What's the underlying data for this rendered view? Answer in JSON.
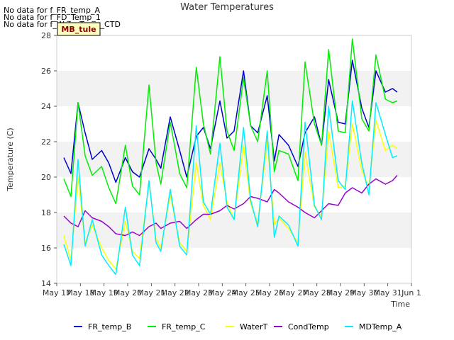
{
  "notes": [
    "No data for f_FR_temp_A",
    "No data for f_FD_Temp_1",
    "No data for f_WaterTemp_CTD"
  ],
  "site_badge": "MB_tule",
  "chart_data": {
    "type": "line",
    "title": "Water Temperatures",
    "xlabel": "Time",
    "ylabel": "Temperature (C)",
    "ylim": [
      14,
      28
    ],
    "yticks": [
      14,
      16,
      18,
      20,
      22,
      24,
      26,
      28
    ],
    "xlim": [
      17,
      32
    ],
    "xticks": [
      {
        "x": 17,
        "label": "May 17"
      },
      {
        "x": 18,
        "label": "May 18"
      },
      {
        "x": 19,
        "label": "May 19"
      },
      {
        "x": 20,
        "label": "May 20"
      },
      {
        "x": 21,
        "label": "May 21"
      },
      {
        "x": 22,
        "label": "May 22"
      },
      {
        "x": 23,
        "label": "May 23"
      },
      {
        "x": 24,
        "label": "May 24"
      },
      {
        "x": 25,
        "label": "May 25"
      },
      {
        "x": 26,
        "label": "May 26"
      },
      {
        "x": 27,
        "label": "May 27"
      },
      {
        "x": 28,
        "label": "May 28"
      },
      {
        "x": 29,
        "label": "May 29"
      },
      {
        "x": 30,
        "label": "May 30"
      },
      {
        "x": 31,
        "label": "May 31"
      },
      {
        "x": 32,
        "label": "Jun 1"
      }
    ],
    "grid": "horizontal bands",
    "legend": "bottom",
    "series": [
      {
        "name": "FR_temp_B",
        "color": "#0000cc",
        "x": [
          17.3,
          17.6,
          17.9,
          18.2,
          18.5,
          18.9,
          19.2,
          19.5,
          19.9,
          20.2,
          20.5,
          20.9,
          21.2,
          21.4,
          21.8,
          22.2,
          22.5,
          22.9,
          23.2,
          23.5,
          23.9,
          24.2,
          24.5,
          24.9,
          25.2,
          25.5,
          25.9,
          26.2,
          26.4,
          26.8,
          27.2,
          27.5,
          27.9,
          28.2,
          28.5,
          28.9,
          29.2,
          29.5,
          29.9,
          30.2,
          30.5,
          30.9,
          31.2,
          31.4
        ],
        "y": [
          21.1,
          20.2,
          24.2,
          22.5,
          21.0,
          21.5,
          20.8,
          19.7,
          21.1,
          20.3,
          20.0,
          21.6,
          21.0,
          20.5,
          23.4,
          21.5,
          20.0,
          22.3,
          22.8,
          21.6,
          24.3,
          22.2,
          22.6,
          26.0,
          22.9,
          22.5,
          24.6,
          20.9,
          22.4,
          21.8,
          20.6,
          22.5,
          23.4,
          21.8,
          25.5,
          23.1,
          23.0,
          26.6,
          23.9,
          22.8,
          26.0,
          24.8,
          25.0,
          24.8
        ]
      },
      {
        "name": "FR_temp_C",
        "color": "#00ee00",
        "x": [
          17.3,
          17.6,
          17.9,
          18.2,
          18.5,
          18.9,
          19.2,
          19.5,
          19.9,
          20.2,
          20.5,
          20.9,
          21.2,
          21.4,
          21.8,
          22.2,
          22.5,
          22.9,
          23.2,
          23.5,
          23.9,
          24.2,
          24.5,
          24.9,
          25.2,
          25.5,
          25.9,
          26.2,
          26.4,
          26.8,
          27.2,
          27.5,
          27.9,
          28.2,
          28.5,
          28.9,
          29.2,
          29.5,
          29.9,
          30.2,
          30.5,
          30.9,
          31.2,
          31.4
        ],
        "y": [
          19.9,
          18.9,
          24.2,
          21.2,
          20.1,
          20.6,
          19.4,
          18.5,
          21.8,
          19.5,
          19.0,
          25.2,
          20.8,
          19.6,
          23.1,
          20.2,
          19.4,
          26.2,
          23.0,
          21.3,
          26.8,
          22.6,
          21.5,
          25.6,
          22.9,
          22.0,
          26.0,
          20.3,
          21.5,
          21.3,
          19.8,
          26.5,
          23.0,
          21.8,
          27.2,
          22.6,
          22.5,
          27.8,
          23.3,
          22.6,
          26.9,
          24.4,
          24.2,
          24.3
        ]
      },
      {
        "name": "WaterT",
        "color": "#ffff00",
        "x": [
          17.3,
          17.6,
          17.9,
          18.2,
          18.5,
          18.9,
          19.2,
          19.5,
          19.9,
          20.2,
          20.5,
          20.9,
          21.2,
          21.4,
          21.8,
          22.2,
          22.5,
          22.9,
          23.2,
          23.5,
          23.9,
          24.2,
          24.5,
          24.9,
          25.2,
          25.5,
          25.9,
          26.2,
          26.4,
          26.8,
          27.2,
          27.5,
          27.9,
          28.2,
          28.5,
          28.9,
          29.2,
          29.5,
          29.9,
          30.2,
          30.5,
          30.9,
          31.2,
          31.4
        ],
        "y": [
          16.7,
          15.3,
          20.0,
          16.3,
          17.3,
          16.0,
          15.3,
          14.8,
          17.5,
          15.8,
          15.4,
          19.7,
          16.5,
          16.0,
          19.0,
          16.3,
          15.8,
          20.8,
          18.4,
          17.6,
          20.8,
          18.6,
          17.6,
          21.8,
          18.5,
          17.4,
          22.0,
          17.3,
          17.7,
          17.1,
          16.3,
          21.4,
          18.3,
          17.8,
          22.6,
          19.4,
          19.5,
          23.0,
          20.4,
          19.4,
          23.2,
          21.5,
          21.8,
          21.6
        ]
      },
      {
        "name": "CondTemp",
        "color": "#9900cc",
        "x": [
          17.3,
          17.6,
          17.9,
          18.2,
          18.5,
          18.9,
          19.2,
          19.5,
          19.9,
          20.2,
          20.5,
          20.9,
          21.2,
          21.4,
          21.8,
          22.2,
          22.5,
          22.9,
          23.2,
          23.5,
          23.9,
          24.2,
          24.5,
          24.9,
          25.2,
          25.5,
          25.9,
          26.2,
          26.4,
          26.8,
          27.2,
          27.5,
          27.9,
          28.2,
          28.5,
          28.9,
          29.2,
          29.5,
          29.9,
          30.2,
          30.5,
          30.9,
          31.2,
          31.4
        ],
        "y": [
          17.8,
          17.4,
          17.2,
          18.1,
          17.7,
          17.5,
          17.2,
          16.8,
          16.7,
          16.9,
          16.7,
          17.2,
          17.4,
          17.1,
          17.4,
          17.5,
          17.1,
          17.6,
          17.9,
          17.9,
          18.1,
          18.4,
          18.2,
          18.5,
          18.9,
          18.8,
          18.6,
          19.3,
          19.1,
          18.6,
          18.3,
          18.0,
          17.7,
          18.1,
          18.5,
          18.4,
          19.1,
          19.4,
          19.1,
          19.6,
          19.9,
          19.6,
          19.8,
          20.1
        ]
      },
      {
        "name": "MDTemp_A",
        "color": "#00eeff",
        "x": [
          17.3,
          17.6,
          17.9,
          18.2,
          18.5,
          18.9,
          19.2,
          19.5,
          19.9,
          20.2,
          20.5,
          20.9,
          21.2,
          21.4,
          21.8,
          22.2,
          22.5,
          22.9,
          23.2,
          23.5,
          23.9,
          24.2,
          24.5,
          24.9,
          25.2,
          25.5,
          25.9,
          26.2,
          26.4,
          26.8,
          27.2,
          27.5,
          27.9,
          28.2,
          28.5,
          28.9,
          29.2,
          29.5,
          29.9,
          30.2,
          30.5,
          30.9,
          31.2,
          31.4
        ],
        "y": [
          16.2,
          15.0,
          21.0,
          16.1,
          17.6,
          15.6,
          15.0,
          14.5,
          18.3,
          15.6,
          15.0,
          19.8,
          16.3,
          15.8,
          19.3,
          16.1,
          15.6,
          22.9,
          18.6,
          17.9,
          21.9,
          18.3,
          17.6,
          22.8,
          18.7,
          17.2,
          22.6,
          16.6,
          17.8,
          17.3,
          16.1,
          23.1,
          18.4,
          17.6,
          24.0,
          19.8,
          19.3,
          24.3,
          20.8,
          19.0,
          24.2,
          22.4,
          21.1,
          21.2
        ]
      }
    ]
  }
}
